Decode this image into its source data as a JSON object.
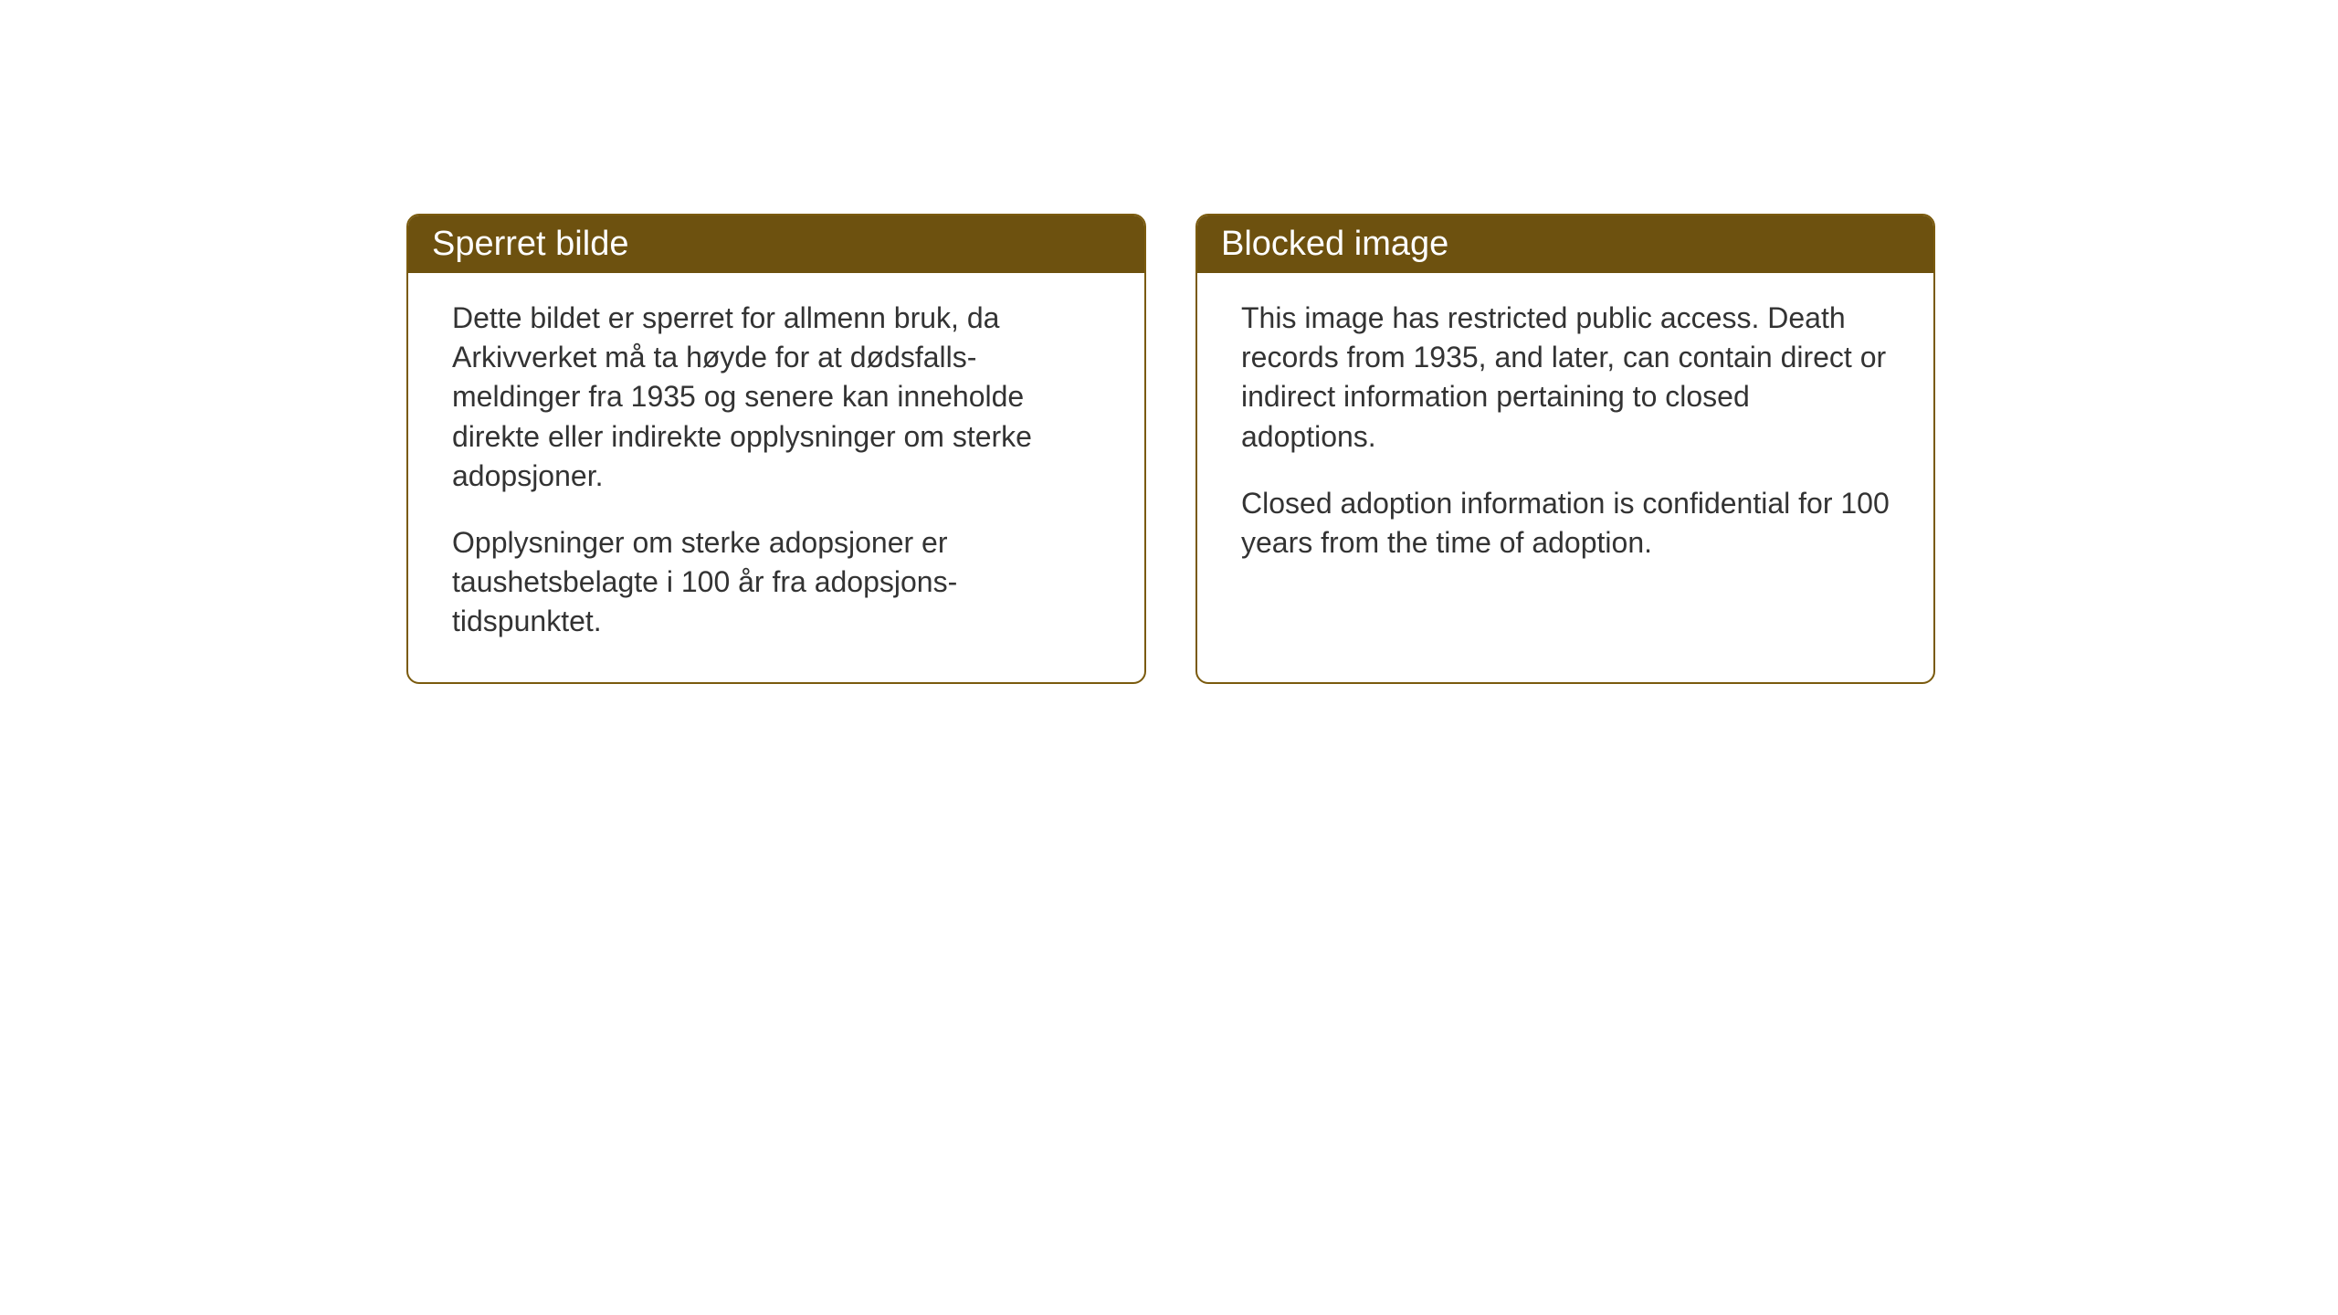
{
  "layout": {
    "background_color": "#ffffff",
    "card_border_color": "#7a5a0d",
    "card_border_radius": "14px",
    "header_bg_color": "#6d510f",
    "header_text_color": "#ffffff",
    "body_text_color": "#333333",
    "header_fontsize": 38,
    "body_fontsize": 32
  },
  "cards": {
    "norwegian": {
      "title": "Sperret bilde",
      "paragraph1": "Dette bildet er sperret for allmenn bruk, da Arkivverket må ta høyde for at dødsfalls-meldinger fra 1935 og senere kan inneholde direkte eller indirekte opplysninger om sterke adopsjoner.",
      "paragraph2": "Opplysninger om sterke adopsjoner er taushetsbelagte i 100 år fra adopsjons-tidspunktet."
    },
    "english": {
      "title": "Blocked image",
      "paragraph1": "This image has restricted public access. Death records from 1935, and later, can contain direct or indirect information pertaining to closed adoptions.",
      "paragraph2": "Closed adoption information is confidential for 100 years from the time of adoption."
    }
  }
}
